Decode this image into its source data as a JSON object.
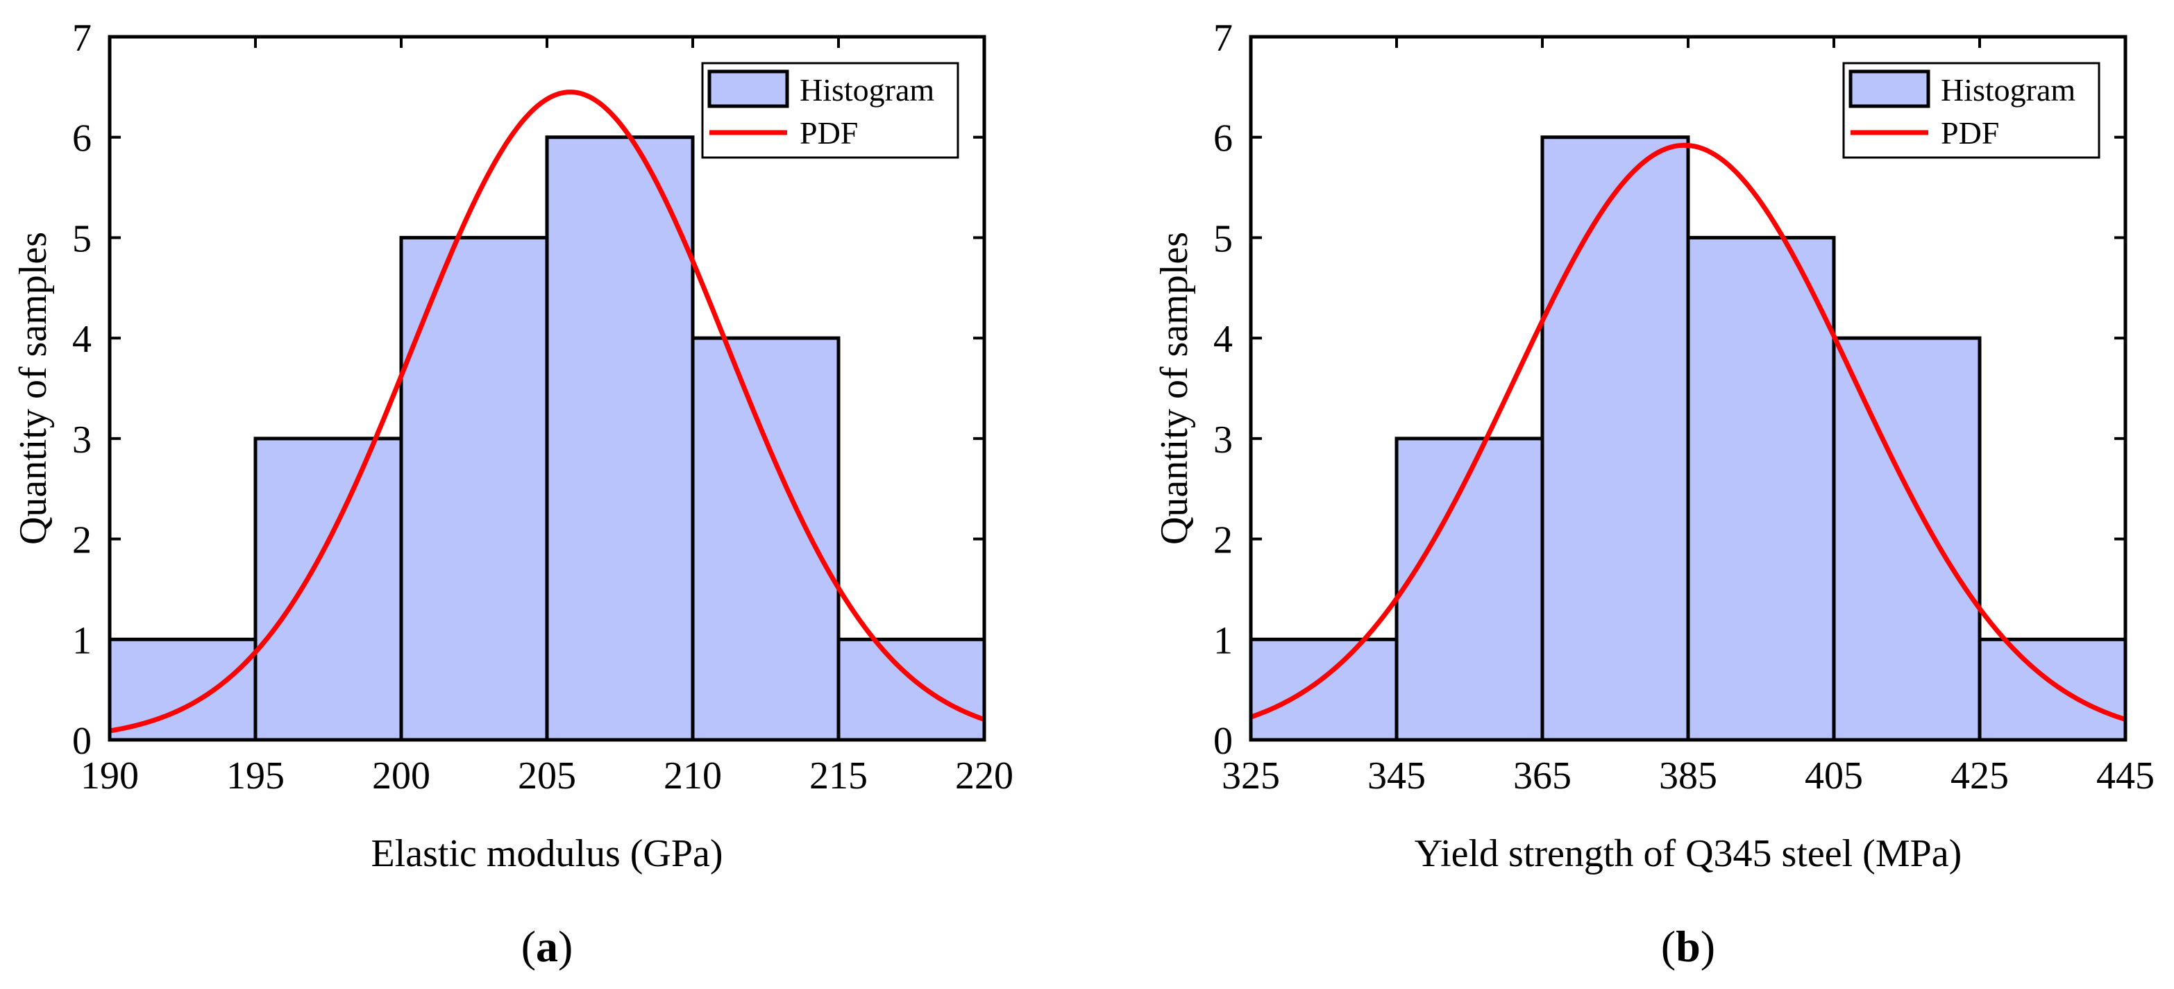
{
  "chart_data": [
    {
      "type": "bar",
      "subtype": "histogram",
      "panel_label_prefix": "(",
      "panel_label_letter": "a",
      "panel_label_suffix": ")",
      "xlabel": "Elastic modulus (GPa)",
      "ylabel": "Quantity of samples",
      "xlim": [
        190,
        220
      ],
      "ylim": [
        0,
        7
      ],
      "xticks": [
        190,
        195,
        200,
        205,
        210,
        215,
        220
      ],
      "yticks": [
        0,
        1,
        2,
        3,
        4,
        5,
        6,
        7
      ],
      "bin_edges": [
        190,
        195,
        200,
        205,
        210,
        215,
        220
      ],
      "counts": [
        1,
        3,
        5,
        6,
        4,
        1
      ],
      "pdf": {
        "mean": 205.8,
        "std": 5.4,
        "peak": 6.45
      },
      "legend": {
        "position": "top-right",
        "items": [
          "Histogram",
          "PDF"
        ]
      }
    },
    {
      "type": "bar",
      "subtype": "histogram",
      "panel_label_prefix": "(",
      "panel_label_letter": "b",
      "panel_label_suffix": ")",
      "xlabel": "Yield strength of Q345 steel (MPa)",
      "ylabel": "Quantity of samples",
      "xlim": [
        325,
        445
      ],
      "ylim": [
        0,
        7
      ],
      "xticks": [
        325,
        345,
        365,
        385,
        405,
        425,
        445
      ],
      "yticks": [
        0,
        1,
        2,
        3,
        4,
        5,
        6,
        7
      ],
      "bin_edges": [
        325,
        345,
        365,
        385,
        405,
        425,
        445
      ],
      "counts": [
        1,
        3,
        6,
        5,
        4,
        1
      ],
      "pdf": {
        "mean": 384.5,
        "std": 23.3,
        "peak": 5.92
      },
      "legend": {
        "position": "top-right",
        "items": [
          "Histogram",
          "PDF"
        ]
      }
    }
  ],
  "colors": {
    "bar_fill": "#b8c4fb",
    "bar_edge": "#000000",
    "pdf_line": "#ff0000",
    "axis": "#000000"
  }
}
